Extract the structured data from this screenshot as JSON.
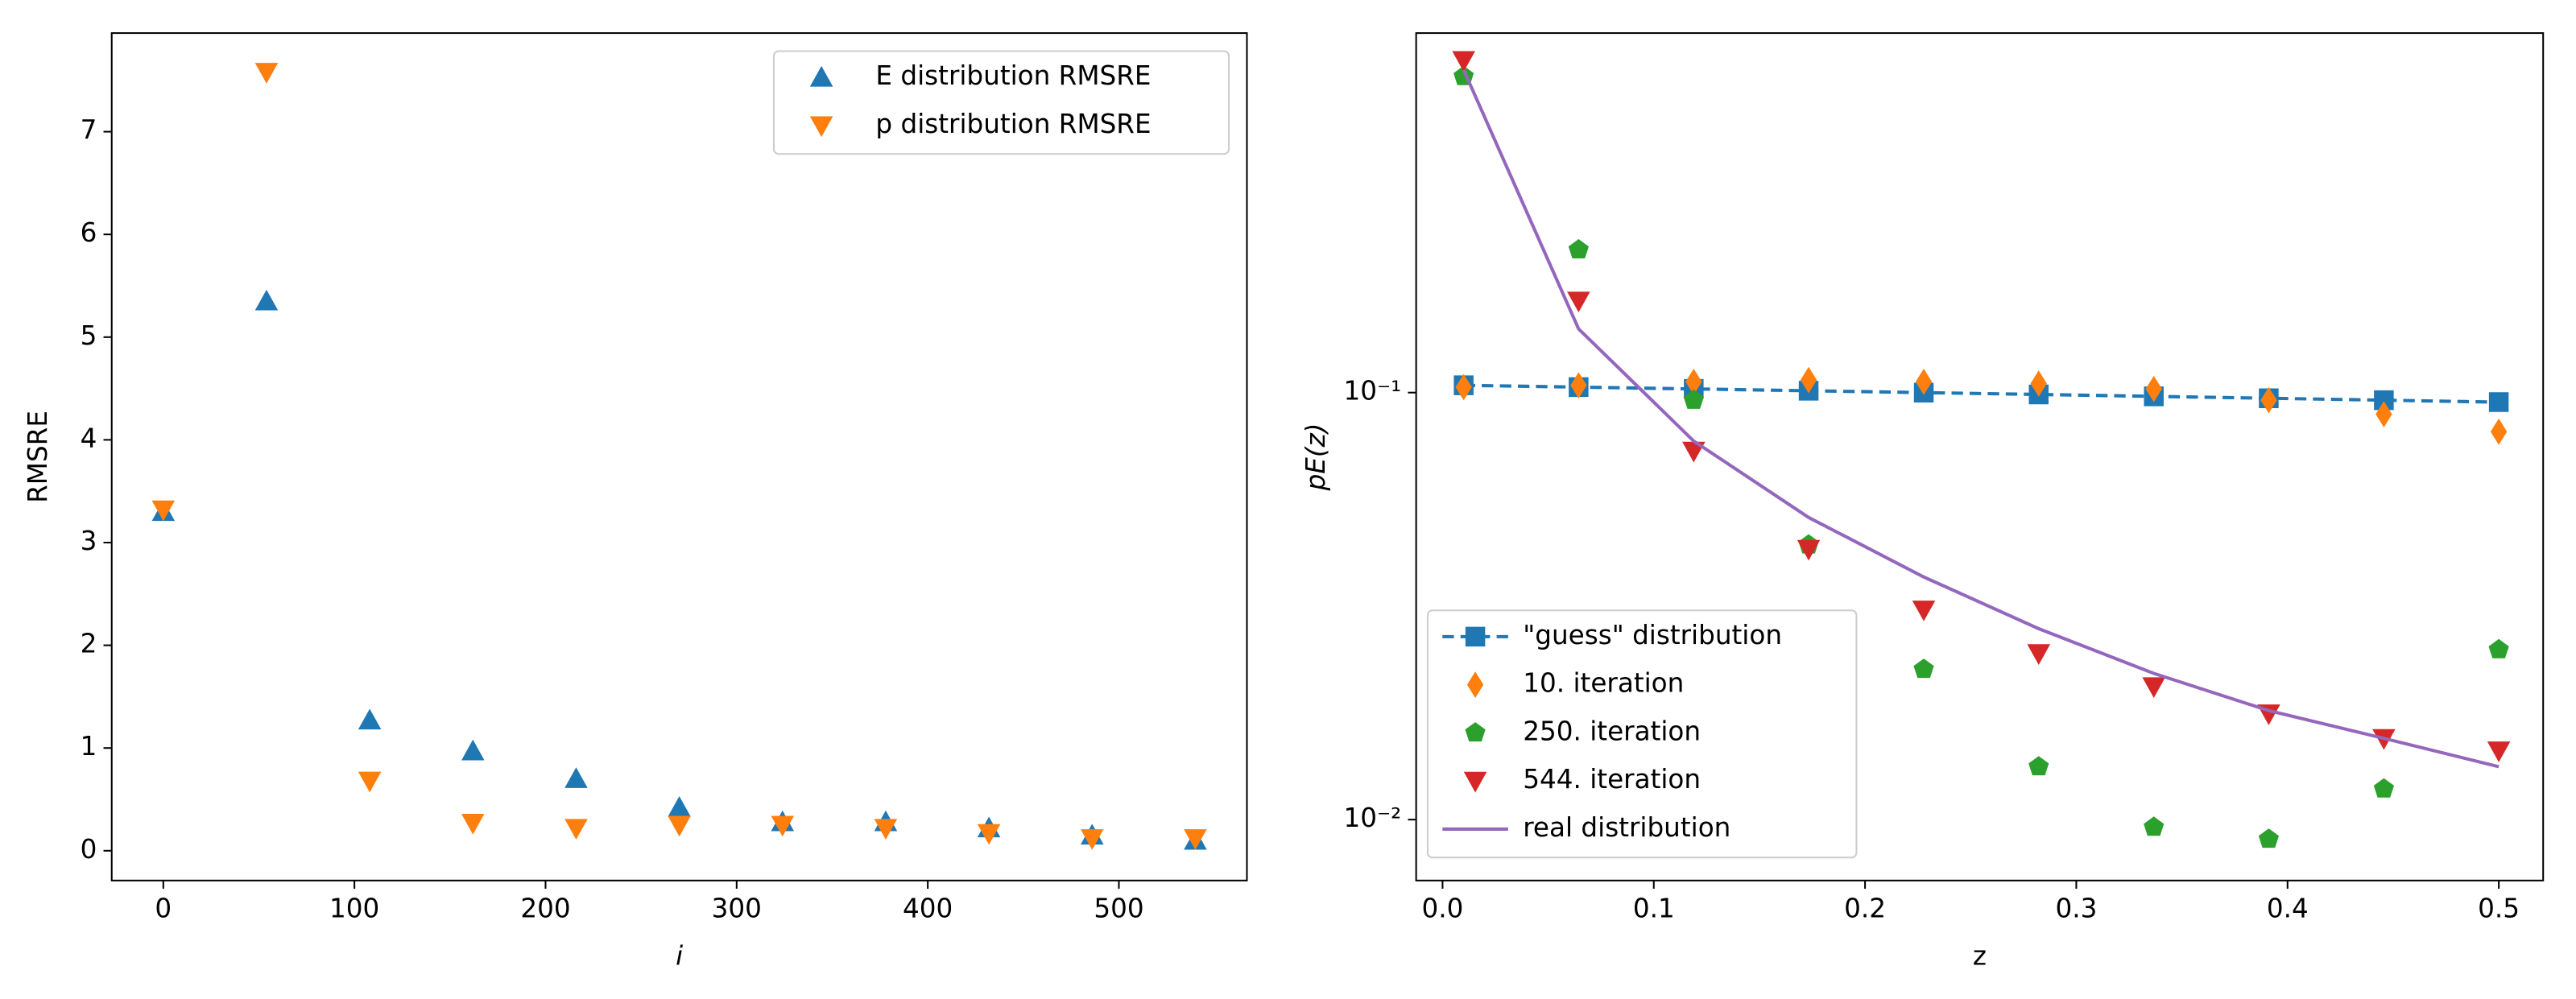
{
  "chart_data": [
    {
      "type": "scatter",
      "xlabel": "i",
      "ylabel": "RMSRE",
      "x": [
        0,
        54,
        108,
        162,
        216,
        270,
        324,
        378,
        432,
        486,
        540
      ],
      "series": [
        {
          "name": "E distribution RMSRE",
          "color": "#1f77b4",
          "marker": "triangle-up",
          "line": "none",
          "values": [
            3.3,
            5.35,
            1.27,
            0.97,
            0.7,
            0.42,
            0.28,
            0.28,
            0.22,
            0.15,
            0.1
          ]
        },
        {
          "name": "p distribution RMSRE",
          "color": "#ff7f0e",
          "marker": "triangle-down",
          "line": "none",
          "values": [
            3.32,
            7.58,
            0.68,
            0.27,
            0.22,
            0.25,
            0.25,
            0.22,
            0.17,
            0.12,
            0.12
          ]
        }
      ],
      "xlim": [
        -27,
        567
      ],
      "xticks": [
        0,
        100,
        200,
        300,
        400,
        500
      ],
      "ylim": [
        -0.29,
        7.96
      ],
      "yticks": [
        0,
        1,
        2,
        3,
        4,
        5,
        6,
        7
      ],
      "log_y": false,
      "legend": "upper-right"
    },
    {
      "type": "scatter",
      "xlabel": "z",
      "ylabel": "pE(z)",
      "x": [
        0.01,
        0.0644,
        0.1189,
        0.1733,
        0.2278,
        0.2822,
        0.3367,
        0.3911,
        0.4456,
        0.5
      ],
      "series": [
        {
          "name": "\"guess\" distribution",
          "color": "#1f77b4",
          "marker": "square",
          "line": "dashed",
          "values": [
            0.104,
            0.103,
            0.102,
            0.101,
            0.1,
            0.099,
            0.098,
            0.097,
            0.096,
            0.095
          ]
        },
        {
          "name": "10. iteration",
          "color": "#ff7f0e",
          "marker": "thin-diamond",
          "line": "none",
          "values": [
            0.103,
            0.104,
            0.106,
            0.107,
            0.106,
            0.105,
            0.102,
            0.096,
            0.089,
            0.081
          ]
        },
        {
          "name": "250. iteration",
          "color": "#2ca02c",
          "marker": "pentagon",
          "line": "none",
          "values": [
            0.55,
            0.216,
            0.096,
            0.044,
            0.0225,
            0.0133,
            0.0096,
            0.009,
            0.0118,
            0.025
          ]
        },
        {
          "name": "544. iteration",
          "color": "#d62728",
          "marker": "triangle-down",
          "line": "none",
          "values": [
            0.6,
            0.164,
            0.073,
            0.043,
            0.031,
            0.0245,
            0.0205,
            0.0177,
            0.0155,
            0.0145
          ]
        },
        {
          "name": "real distribution",
          "color": "#9467bd",
          "marker": "none",
          "line": "solid",
          "values": [
            0.57,
            0.141,
            0.077,
            0.051,
            0.037,
            0.028,
            0.022,
            0.018,
            0.0155,
            0.0133
          ]
        }
      ],
      "xlim": [
        -0.0125,
        0.521
      ],
      "xticks": [
        0.0,
        0.1,
        0.2,
        0.3,
        0.4,
        0.5
      ],
      "ylim": [
        0.0072,
        0.695
      ],
      "yticks": [
        {
          "value": 0.01,
          "label": "10⁻²"
        },
        {
          "value": 0.1,
          "label": "10⁻¹"
        }
      ],
      "log_y": true,
      "legend": "lower-left"
    }
  ]
}
